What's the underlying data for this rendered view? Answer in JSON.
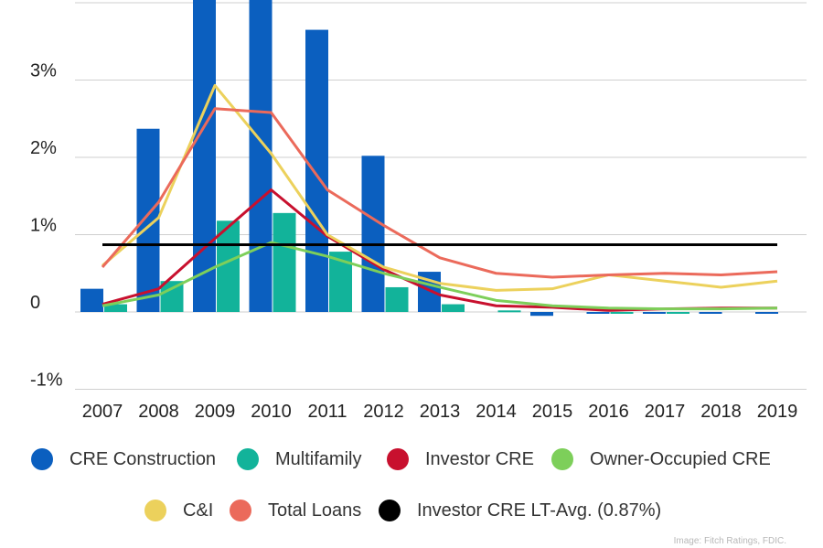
{
  "chart_data": {
    "type": "bar",
    "title": "",
    "xlabel": "",
    "ylabel": "",
    "ylim": [
      -1.2,
      4.0
    ],
    "y_ticks": [
      {
        "value": 3,
        "label": "3%"
      },
      {
        "value": 2,
        "label": "2%"
      },
      {
        "value": 1,
        "label": "1%"
      },
      {
        "value": 0,
        "label": "0"
      },
      {
        "value": -1,
        "label": "-1%"
      }
    ],
    "categories": [
      "2007",
      "2008",
      "2009",
      "2010",
      "2011",
      "2012",
      "2013",
      "2014",
      "2015",
      "2016",
      "2017",
      "2018",
      "2019"
    ],
    "bar_series": [
      {
        "name": "CRE Construction",
        "color": "#0b5fbf",
        "values": [
          0.3,
          2.37,
          4.5,
          4.5,
          3.65,
          2.02,
          0.52,
          0.0,
          -0.05,
          -0.02,
          -0.02,
          -0.02,
          -0.02
        ]
      },
      {
        "name": "Multifamily",
        "color": "#12b39a",
        "values": [
          0.1,
          0.4,
          1.18,
          1.28,
          0.78,
          0.32,
          0.1,
          0.02,
          0.0,
          -0.01,
          -0.02,
          0.0,
          0.0
        ]
      }
    ],
    "line_series": [
      {
        "name": "Investor CRE",
        "color": "#c8102e",
        "values": [
          0.1,
          0.3,
          0.95,
          1.58,
          0.98,
          0.55,
          0.22,
          0.08,
          0.06,
          0.02,
          0.04,
          0.05,
          0.05
        ]
      },
      {
        "name": "Owner-Occupied CRE",
        "color": "#7dcf5a",
        "values": [
          0.08,
          0.22,
          0.58,
          0.9,
          0.72,
          0.5,
          0.32,
          0.15,
          0.08,
          0.05,
          0.04,
          0.04,
          0.05
        ]
      },
      {
        "name": "C&I",
        "color": "#ecd15c",
        "values": [
          0.6,
          1.22,
          2.93,
          2.05,
          1.0,
          0.58,
          0.37,
          0.28,
          0.3,
          0.48,
          0.4,
          0.32,
          0.4
        ]
      },
      {
        "name": "Total Loans",
        "color": "#eb6a5b",
        "values": [
          0.58,
          1.42,
          2.63,
          2.58,
          1.58,
          1.12,
          0.7,
          0.5,
          0.45,
          0.48,
          0.5,
          0.48,
          0.52
        ]
      }
    ],
    "reference_line": {
      "name": "Investor CRE LT-Avg. (0.87%)",
      "value": 0.87,
      "color": "#000000"
    },
    "grid": true,
    "legend_position": "bottom"
  },
  "legend": {
    "items": [
      {
        "label": "CRE Construction",
        "color": "#0b5fbf"
      },
      {
        "label": "Multifamily",
        "color": "#12b39a"
      },
      {
        "label": "Investor CRE",
        "color": "#c8102e"
      },
      {
        "label": "Owner-Occupied CRE",
        "color": "#7dcf5a"
      },
      {
        "label": "C&I",
        "color": "#ecd15c"
      },
      {
        "label": "Total Loans",
        "color": "#eb6a5b"
      },
      {
        "label": "Investor CRE LT-Avg. (0.87%)",
        "color": "#000000"
      }
    ]
  },
  "credit": "Image: Fitch Ratings, FDIC."
}
